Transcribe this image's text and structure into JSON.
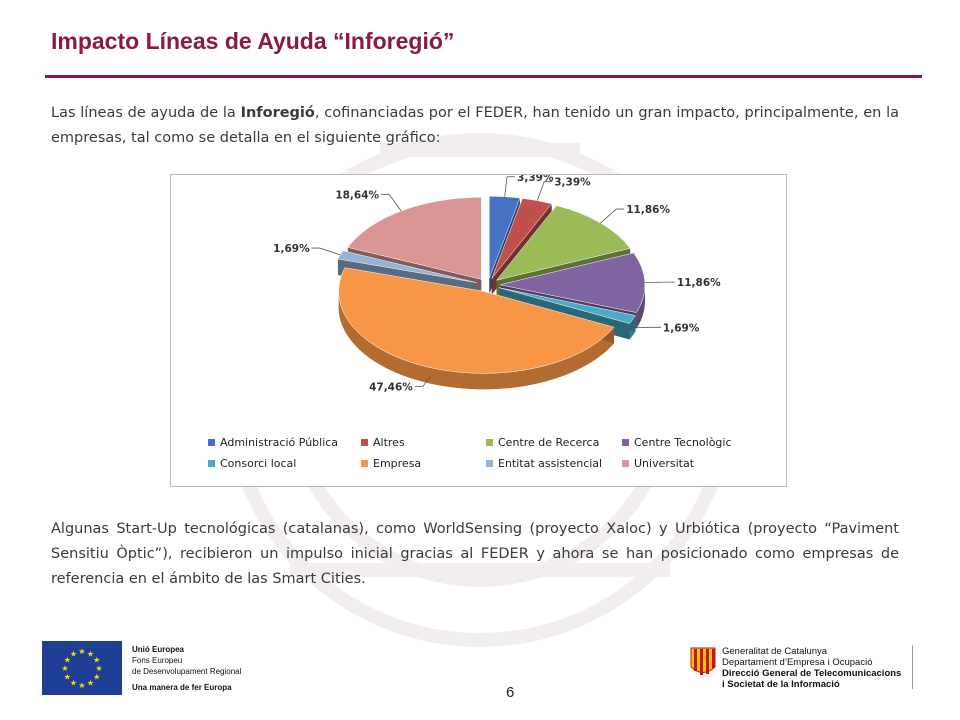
{
  "slide": {
    "title": "Impacto Líneas de Ayuda “Inforegió”",
    "page_number": "6"
  },
  "paragraph1": {
    "part1": "Las líneas de ayuda de la ",
    "bold": "Inforegió",
    "part2": ", cofinanciadas por el FEDER, han tenido un gran impacto, principalmente, en la empresas, tal como se detalla en el siguiente gráfico:"
  },
  "paragraph2": {
    "text": "Algunas Start-Up tecnológicas (catalanas), como WorldSensing (proyecto Xaloc) y Urbiótica (proyecto “Paviment Sensitiu Òptic”), recibieron un impulso inicial gracias al FEDER y ahora se han posicionado como empresas de referencia en el ámbito de las Smart Cities."
  },
  "chart_data": {
    "type": "pie",
    "style": "3d-exploded",
    "title": "",
    "legend_position": "bottom",
    "slices": [
      {
        "label": "Administració Pública",
        "value": 3.39,
        "value_label": "3,39%",
        "color": "#4472c4"
      },
      {
        "label": "Altres",
        "value": 3.39,
        "value_label": "3,39%",
        "color": "#c0504d"
      },
      {
        "label": "Centre de Recerca",
        "value": 11.86,
        "value_label": "11,86%",
        "color": "#9bbb59"
      },
      {
        "label": "Centre Tecnològic",
        "value": 11.86,
        "value_label": "11,86%",
        "color": "#8064a2"
      },
      {
        "label": "Consorci local",
        "value": 1.69,
        "value_label": "1,69%",
        "color": "#4bacc6"
      },
      {
        "label": "Empresa",
        "value": 47.46,
        "value_label": "47,46%",
        "color": "#f79646"
      },
      {
        "label": "Entitat assistencial",
        "value": 1.69,
        "value_label": "1,69%",
        "color": "#95b3d7"
      },
      {
        "label": "Universitat",
        "value": 18.64,
        "value_label": "18,64%",
        "color": "#d99694"
      }
    ]
  },
  "footer": {
    "eu": {
      "line1": "Unió Europea",
      "line2": "Fons Europeu",
      "line3": "de Desenvolupament Regional",
      "line4": "Una manera de fer Europa"
    },
    "generalitat": {
      "line1": "Generalitat de Catalunya",
      "line2": "Departament d’Empresa i Ocupació",
      "line3": "Direcció General de Telecomunicacions",
      "line4": "i Societat de la Informació"
    }
  }
}
